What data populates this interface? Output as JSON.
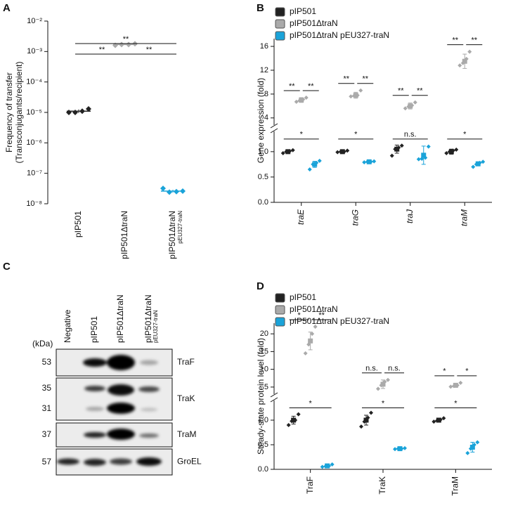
{
  "chart_data": [
    {
      "panel": "A",
      "type": "dot",
      "log": true,
      "ylabel": [
        "Frequency of transfer",
        "(Transconjugants/recipient)"
      ],
      "ylim": [
        1e-08,
        0.01
      ],
      "yticks": [
        {
          "value": 1e-08,
          "label": "10⁻⁸"
        },
        {
          "value": 1e-07,
          "label": "10⁻⁷"
        },
        {
          "value": 1e-06,
          "label": "10⁻⁶"
        },
        {
          "value": 1e-05,
          "label": "10⁻⁵"
        },
        {
          "value": 0.0001,
          "label": "10⁻⁴"
        },
        {
          "value": 0.001,
          "label": "10⁻³"
        },
        {
          "value": 0.01,
          "label": "10⁻²"
        }
      ],
      "categories": [
        [
          "pIP501"
        ],
        [
          "pIP501ΔtraN"
        ],
        [
          "pIP501ΔtraN",
          "pEU327-traN"
        ]
      ],
      "groups": [
        {
          "color": "#222222",
          "points": [
            1e-05,
            1e-05,
            1.1e-05,
            1.3e-05
          ],
          "mean": 1.1e-05,
          "sd": 1.5e-06
        },
        {
          "color": "#aaaaaa",
          "points": [
            0.0016,
            0.0017,
            0.0017,
            0.0018
          ],
          "mean": 0.0017,
          "sd": 8e-05
        },
        {
          "color": "#1aa3d9",
          "points": [
            3.2e-08,
            2.4e-08,
            2.5e-08,
            2.6e-08
          ],
          "mean": 2.6e-08,
          "sd": 3e-09
        }
      ],
      "significance": [
        "**",
        "**",
        "**"
      ]
    },
    {
      "panel": "B",
      "type": "dot-grouped",
      "ylabel": "Gene expression (fold)",
      "ylim": [
        0,
        1.4
      ],
      "yticks": [
        {
          "value": 0,
          "label": "0.0"
        },
        {
          "value": 0.5,
          "label": "0.5"
        },
        {
          "value": 1,
          "label": "1.0"
        }
      ],
      "upper_ylim": [
        2.8,
        17.3
      ],
      "upper_yticks": [
        4,
        8,
        12,
        16
      ],
      "categories": [
        "traE",
        "traG",
        "traJ",
        "traM"
      ],
      "series": [
        {
          "name": "pIP501",
          "color": "#222222",
          "values": [
            1.0,
            1.0,
            1.05,
            1.0
          ],
          "sd": [
            0.03,
            0.03,
            0.08,
            0.05
          ],
          "points": [
            [
              0.97,
              1.0,
              1.01,
              1.03
            ],
            [
              0.99,
              1.0,
              1.0,
              1.02
            ],
            [
              0.92,
              1.05,
              1.08,
              1.12
            ],
            [
              0.97,
              1.0,
              1.02,
              1.04
            ]
          ]
        },
        {
          "name": "pIP501ΔtraN",
          "color": "#aaaaaa",
          "values": [
            7.0,
            7.8,
            6.0,
            13.5
          ],
          "sd": [
            0.4,
            0.5,
            0.5,
            1.2
          ],
          "points": [
            [
              6.7,
              6.9,
              7.1,
              7.4
            ],
            [
              7.6,
              7.7,
              7.8,
              8.6
            ],
            [
              5.6,
              5.9,
              6.1,
              6.6
            ],
            [
              12.8,
              13.2,
              13.9,
              15.1
            ]
          ]
        },
        {
          "name": "pIP501ΔtraN pEU327-traN",
          "color": "#1aa3d9",
          "values": [
            0.75,
            0.8,
            0.93,
            0.76
          ],
          "sd": [
            0.06,
            0.02,
            0.18,
            0.04
          ],
          "points": [
            [
              0.65,
              0.75,
              0.78,
              0.82
            ],
            [
              0.79,
              0.8,
              0.8,
              0.81
            ],
            [
              0.85,
              0.86,
              0.88,
              1.1
            ],
            [
              0.7,
              0.75,
              0.78,
              0.8
            ]
          ]
        }
      ],
      "sig_upper": [
        [
          "**",
          "**"
        ],
        [
          "**",
          "**"
        ],
        [
          "**",
          "**"
        ],
        [
          "**",
          "**"
        ]
      ],
      "sig_lower": [
        "*",
        "*",
        "n.s.",
        "*"
      ]
    },
    {
      "panel": "D",
      "type": "dot-grouped",
      "ylabel": "Steady-state protein level (fold)",
      "ylim": [
        0,
        1.4
      ],
      "yticks": [
        {
          "value": 0,
          "label": "0.0"
        },
        {
          "value": 0.5,
          "label": "0.5"
        },
        {
          "value": 1,
          "label": "1.0"
        }
      ],
      "upper_ylim": [
        3,
        23
      ],
      "upper_yticks": [
        5,
        10,
        15,
        20
      ],
      "categories": [
        "TraF",
        "TraK",
        "TraM"
      ],
      "series": [
        {
          "name": "pIP501",
          "color": "#222222",
          "values": [
            1.0,
            1.0,
            1.0
          ],
          "sd": [
            0.08,
            0.1,
            0.04
          ],
          "points": [
            [
              0.9,
              0.98,
              1.0,
              1.12
            ],
            [
              0.87,
              0.97,
              1.05,
              1.15
            ],
            [
              0.97,
              0.99,
              1.01,
              1.04
            ]
          ]
        },
        {
          "name": "pIP501ΔtraN",
          "color": "#aaaaaa",
          "values": [
            18,
            5.8,
            5.5
          ],
          "sd": [
            2.5,
            1.2,
            0.4
          ],
          "points": [
            [
              14.5,
              17,
              20,
              22
            ],
            [
              4.5,
              5.5,
              6.5,
              7
            ],
            [
              5.1,
              5.3,
              5.5,
              6.2
            ]
          ]
        },
        {
          "name": "pIP501ΔtraN pEU327-traN",
          "color": "#1aa3d9",
          "values": [
            0.07,
            0.42,
            0.45
          ],
          "sd": [
            0.02,
            0.02,
            0.1
          ],
          "points": [
            [
              0.05,
              0.06,
              0.07,
              0.1
            ],
            [
              0.41,
              0.42,
              0.42,
              0.43
            ],
            [
              0.33,
              0.42,
              0.5,
              0.55
            ]
          ]
        }
      ],
      "sig_upper": [
        [
          "*",
          "**"
        ],
        [
          "n.s.",
          "n.s."
        ],
        [
          "*",
          "*"
        ]
      ],
      "sig_lower": [
        "*",
        "*",
        "*"
      ]
    }
  ],
  "blot": {
    "panel": "C",
    "unit": "(kDa)",
    "lanes": [
      [
        "Negative"
      ],
      [
        "pIP501"
      ],
      [
        "pIP501ΔtraN"
      ],
      [
        "pIP501ΔtraN",
        "pEU327-traN"
      ]
    ],
    "rows": [
      {
        "markers": [
          53
        ],
        "protein": "TraF"
      },
      {
        "markers": [
          35,
          31
        ],
        "protein": "TraK"
      },
      {
        "markers": [
          37
        ],
        "protein": "TraM"
      },
      {
        "markers": [
          57
        ],
        "protein": "GroEL"
      }
    ]
  }
}
